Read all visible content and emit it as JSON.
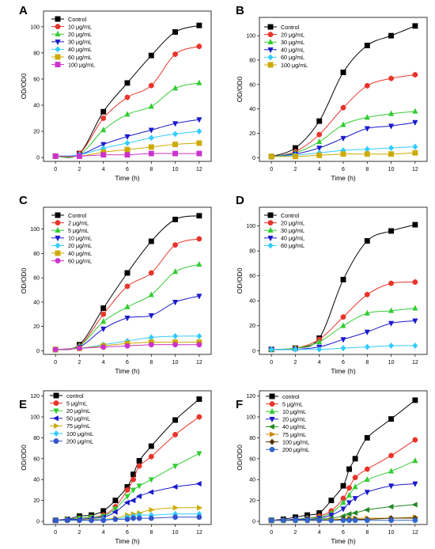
{
  "chart_data": [
    {
      "panel": "A",
      "type": "line",
      "xlabel": "Time (h)",
      "ylabel": "OD/OD0",
      "x": [
        0,
        2,
        4,
        6,
        8,
        10,
        12
      ],
      "xticks": [
        "0",
        "2",
        "4",
        "6",
        "8",
        "10",
        "12"
      ],
      "yticks": [
        "0",
        "20",
        "40",
        "60",
        "80",
        "100"
      ],
      "ylim": [
        -3,
        112
      ],
      "series": [
        {
          "name": "Control",
          "color": "#000000",
          "marker": "square",
          "values": [
            1,
            3,
            35,
            57,
            78,
            96,
            101
          ]
        },
        {
          "name": "10 μg/mL",
          "color": "#e8352a",
          "marker": "circle",
          "values": [
            1,
            3,
            30,
            46,
            55,
            79,
            85
          ]
        },
        {
          "name": "20 μg/mL",
          "color": "#33cc33",
          "marker": "triangle-up",
          "values": [
            1,
            2,
            21,
            33,
            39,
            53,
            57
          ]
        },
        {
          "name": "30 μg/mL",
          "color": "#1a1acc",
          "marker": "triangle-down",
          "values": [
            1,
            2,
            10,
            16,
            21,
            26,
            29
          ]
        },
        {
          "name": "40 μg/mL",
          "color": "#33ccff",
          "marker": "diamond",
          "values": [
            1,
            2,
            7,
            11,
            15,
            18,
            20
          ]
        },
        {
          "name": "60 μg/mL",
          "color": "#ccaa00",
          "marker": "square",
          "values": [
            1,
            1,
            4,
            6,
            8,
            10,
            11
          ]
        },
        {
          "name": "100 μg/mL",
          "color": "#cc33cc",
          "marker": "square",
          "values": [
            1,
            1,
            2,
            2,
            3,
            3,
            3
          ]
        }
      ]
    },
    {
      "panel": "B",
      "type": "line",
      "xlabel": "Time (h)",
      "ylabel": "OD/OD0",
      "x": [
        0,
        2,
        4,
        6,
        8,
        10,
        12
      ],
      "xticks": [
        "0",
        "2",
        "4",
        "6",
        "8",
        "10",
        "12"
      ],
      "yticks": [
        "0",
        "20",
        "40",
        "60",
        "80",
        "100"
      ],
      "ylim": [
        -3,
        115
      ],
      "series": [
        {
          "name": "Control",
          "color": "#000000",
          "marker": "square",
          "values": [
            1,
            8,
            30,
            70,
            92,
            100,
            108
          ]
        },
        {
          "name": "20  μg/mL",
          "color": "#e8352a",
          "marker": "circle",
          "values": [
            1,
            5,
            19,
            41,
            59,
            65,
            68
          ]
        },
        {
          "name": "30  μg/mL",
          "color": "#33cc33",
          "marker": "triangle-up",
          "values": [
            1,
            4,
            13,
            27,
            33,
            36,
            38
          ]
        },
        {
          "name": "40  μg/mL",
          "color": "#1a1acc",
          "marker": "triangle-down",
          "values": [
            1,
            3,
            8,
            16,
            24,
            26,
            29
          ]
        },
        {
          "name": "60  μg/mL",
          "color": "#33ccff",
          "marker": "diamond",
          "values": [
            1,
            2,
            4,
            6,
            7,
            8,
            9
          ]
        },
        {
          "name": "100  μg/mL",
          "color": "#ccaa00",
          "marker": "square",
          "values": [
            1,
            1,
            2,
            3,
            3,
            3,
            4
          ]
        }
      ]
    },
    {
      "panel": "C",
      "type": "line",
      "xlabel": "Time (h)",
      "ylabel": "OD/OD0",
      "x": [
        0,
        2,
        4,
        6,
        8,
        10,
        12
      ],
      "xticks": [
        "0",
        "2",
        "4",
        "6",
        "8",
        "10",
        "12"
      ],
      "yticks": [
        "0",
        "20",
        "40",
        "60",
        "80",
        "100"
      ],
      "ylim": [
        -3,
        118
      ],
      "series": [
        {
          "name": "Control",
          "color": "#000000",
          "marker": "square",
          "values": [
            1,
            5,
            35,
            64,
            90,
            108,
            111
          ]
        },
        {
          "name": "2  μg/mL",
          "color": "#e8352a",
          "marker": "circle",
          "values": [
            1,
            4,
            30,
            53,
            64,
            87,
            92
          ]
        },
        {
          "name": "5  μg/mL",
          "color": "#33cc33",
          "marker": "triangle-up",
          "values": [
            1,
            4,
            24,
            36,
            46,
            65,
            71
          ]
        },
        {
          "name": "10  μg/mL",
          "color": "#1a1acc",
          "marker": "triangle-down",
          "values": [
            1,
            3,
            18,
            27,
            29,
            40,
            45
          ]
        },
        {
          "name": "20  μg/mL",
          "color": "#33ccff",
          "marker": "diamond",
          "values": [
            1,
            2,
            5,
            8,
            11,
            12,
            12
          ]
        },
        {
          "name": "40  μg/mL",
          "color": "#ccaa00",
          "marker": "square",
          "values": [
            1,
            2,
            4,
            6,
            7,
            7,
            7
          ]
        },
        {
          "name": "60  μg/mL",
          "color": "#cc33cc",
          "marker": "circle",
          "values": [
            1,
            2,
            3,
            4,
            5,
            5,
            5
          ]
        }
      ]
    },
    {
      "panel": "D",
      "type": "line",
      "xlabel": "Time (h)",
      "ylabel": "OD/OD0",
      "x": [
        0,
        2,
        4,
        6,
        8,
        10,
        12
      ],
      "xticks": [
        "0",
        "2",
        "4",
        "6",
        "8",
        "10",
        "12"
      ],
      "yticks": [
        "0",
        "20",
        "40",
        "60",
        "80",
        "100"
      ],
      "ylim": [
        -3,
        115
      ],
      "series": [
        {
          "name": "Control",
          "color": "#000000",
          "marker": "square",
          "values": [
            1,
            2,
            10,
            57,
            88,
            96,
            101
          ]
        },
        {
          "name": "20  μg/mL",
          "color": "#e8352a",
          "marker": "circle",
          "values": [
            1,
            2,
            9,
            27,
            45,
            54,
            55
          ]
        },
        {
          "name": "30  μg/mL",
          "color": "#33cc33",
          "marker": "triangle-up",
          "values": [
            1,
            2,
            7,
            20,
            30,
            32,
            34
          ]
        },
        {
          "name": "40  μg/mL",
          "color": "#1a1acc",
          "marker": "triangle-down",
          "values": [
            1,
            1,
            3,
            9,
            15,
            22,
            24
          ]
        },
        {
          "name": "60  μg/mL",
          "color": "#33ccff",
          "marker": "diamond",
          "values": [
            1,
            1,
            1,
            2,
            3,
            4,
            4
          ]
        }
      ]
    },
    {
      "panel": "E",
      "type": "line",
      "xlabel": "Time (h)",
      "ylabel": "OD/OD0",
      "x": [
        0,
        1,
        2,
        3,
        4,
        5,
        6,
        6.5,
        7,
        8,
        10,
        12
      ],
      "xticks": [
        "0",
        "2",
        "4",
        "6",
        "8",
        "10",
        "12"
      ],
      "yticks": [
        "0",
        "20",
        "40",
        "60",
        "80",
        "100",
        "120"
      ],
      "ylim": [
        -3,
        125
      ],
      "series": [
        {
          "name": "control",
          "color": "#000000",
          "marker": "square",
          "values": [
            1,
            2,
            5,
            6,
            10,
            20,
            33,
            45,
            58,
            72,
            97,
            117
          ]
        },
        {
          "name": "5 μg/mL",
          "color": "#e8352a",
          "marker": "circle",
          "values": [
            1,
            2,
            3,
            4,
            6,
            14,
            30,
            40,
            53,
            62,
            83,
            100
          ]
        },
        {
          "name": "20 μg/mL",
          "color": "#33cc33",
          "marker": "triangle-down",
          "values": [
            1,
            2,
            3,
            4,
            5,
            12,
            24,
            30,
            34,
            40,
            53,
            65
          ]
        },
        {
          "name": "50 μg/mL",
          "color": "#1a1acc",
          "marker": "triangle-left",
          "values": [
            1,
            2,
            2,
            3,
            4,
            9,
            18,
            20,
            24,
            28,
            33,
            36
          ]
        },
        {
          "name": "75 μg/mL",
          "color": "#ccaa00",
          "marker": "triangle-right",
          "values": [
            1,
            1,
            1,
            2,
            2,
            3,
            6,
            7,
            8,
            11,
            13,
            13
          ]
        },
        {
          "name": "100 μg/mL",
          "color": "#33ccff",
          "marker": "diamond",
          "values": [
            1,
            1,
            1,
            1,
            2,
            2,
            4,
            5,
            6,
            6,
            7,
            7
          ]
        },
        {
          "name": "200 μg/mL",
          "color": "#3355cc",
          "marker": "circle",
          "values": [
            1,
            1,
            1,
            1,
            1,
            2,
            2,
            3,
            3,
            3,
            4,
            4
          ]
        }
      ]
    },
    {
      "panel": "F",
      "type": "line",
      "xlabel": "Time (h)",
      "ylabel": "OD/OD0",
      "x": [
        0,
        1,
        2,
        3,
        4,
        5,
        6,
        6.5,
        7,
        8,
        10,
        12
      ],
      "xticks": [
        "0",
        "2",
        "4",
        "6",
        "8",
        "10",
        "12"
      ],
      "yticks": [
        "0",
        "20",
        "40",
        "60",
        "80",
        "100",
        "120"
      ],
      "ylim": [
        -3,
        125
      ],
      "series": [
        {
          "name": "control",
          "color": "#000000",
          "marker": "square",
          "values": [
            1,
            2,
            4,
            6,
            8,
            20,
            34,
            50,
            60,
            80,
            98,
            116
          ]
        },
        {
          "name": "5 μg/mL",
          "color": "#e8352a",
          "marker": "circle",
          "values": [
            1,
            1,
            2,
            3,
            5,
            10,
            22,
            32,
            42,
            50,
            63,
            78
          ]
        },
        {
          "name": "10 μg/mL",
          "color": "#33cc33",
          "marker": "triangle-up",
          "values": [
            1,
            1,
            2,
            3,
            4,
            8,
            18,
            25,
            33,
            40,
            48,
            58
          ]
        },
        {
          "name": "20 μg/mL",
          "color": "#1a1acc",
          "marker": "triangle-down",
          "values": [
            1,
            1,
            2,
            2,
            3,
            6,
            12,
            18,
            22,
            28,
            34,
            36
          ]
        },
        {
          "name": "40 μg/mL",
          "color": "#228822",
          "marker": "triangle-left",
          "values": [
            1,
            1,
            1,
            1,
            2,
            3,
            5,
            7,
            8,
            11,
            14,
            16
          ]
        },
        {
          "name": "75 μg/mL",
          "color": "#cc8800",
          "marker": "triangle-right",
          "values": [
            1,
            1,
            1,
            1,
            1,
            2,
            2,
            3,
            3,
            3,
            3,
            4
          ]
        },
        {
          "name": "100 μg/mL",
          "color": "#553300",
          "marker": "diamond",
          "values": [
            1,
            1,
            1,
            1,
            1,
            1,
            2,
            2,
            2,
            2,
            3,
            3
          ]
        },
        {
          "name": "200 μg/mL",
          "color": "#3366cc",
          "marker": "circle",
          "values": [
            1,
            1,
            1,
            1,
            1,
            1,
            1,
            1,
            1,
            1,
            1,
            1
          ]
        }
      ]
    }
  ]
}
